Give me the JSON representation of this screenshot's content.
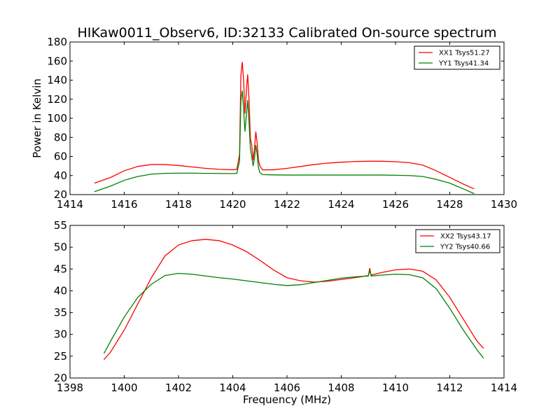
{
  "title": "HIKaw0011_Observ6, ID:32133 Calibrated On-source spectrum",
  "chart_data": [
    {
      "type": "line",
      "title": "HIKaw0011_Observ6, ID:32133 Calibrated On-source spectrum",
      "xlabel": "",
      "ylabel": "Power in Kelvin",
      "xlim": [
        1414,
        1430
      ],
      "ylim": [
        20,
        180
      ],
      "xticks": [
        1414,
        1416,
        1418,
        1420,
        1422,
        1424,
        1426,
        1428,
        1430
      ],
      "yticks": [
        20,
        40,
        60,
        80,
        100,
        120,
        140,
        160,
        180
      ],
      "grid": false,
      "legend": "top-right",
      "series": [
        {
          "name": "XX1 Tsys51.27",
          "color": "#ff0000",
          "x": [
            1414.9,
            1415.5,
            1416.0,
            1416.5,
            1417.0,
            1417.5,
            1418.0,
            1418.5,
            1419.0,
            1419.5,
            1420.0,
            1420.15,
            1420.25,
            1420.3,
            1420.35,
            1420.4,
            1420.45,
            1420.5,
            1420.55,
            1420.6,
            1420.65,
            1420.7,
            1420.75,
            1420.8,
            1420.85,
            1420.9,
            1420.95,
            1421.0,
            1421.1,
            1421.5,
            1422.0,
            1422.5,
            1423.0,
            1423.5,
            1424.0,
            1424.5,
            1425.0,
            1425.5,
            1426.0,
            1426.5,
            1427.0,
            1427.5,
            1428.0,
            1428.5,
            1428.9
          ],
          "y": [
            32,
            38,
            45,
            49.5,
            51.5,
            51.5,
            50.5,
            49,
            47.5,
            46.5,
            46,
            46.5,
            62,
            145,
            159,
            140,
            105,
            128,
            146,
            120,
            79,
            72,
            56,
            68,
            86,
            74,
            56,
            50,
            46,
            46,
            47.5,
            49.5,
            51.5,
            53,
            54,
            54.7,
            55,
            55,
            54.5,
            53.5,
            51,
            45,
            38,
            31,
            26
          ]
        },
        {
          "name": "YY1 Tsys41.34",
          "color": "#008000",
          "x": [
            1414.9,
            1415.5,
            1416.0,
            1416.5,
            1417.0,
            1417.5,
            1418.0,
            1418.5,
            1419.0,
            1419.5,
            1420.0,
            1420.15,
            1420.25,
            1420.3,
            1420.35,
            1420.4,
            1420.45,
            1420.5,
            1420.55,
            1420.6,
            1420.65,
            1420.7,
            1420.75,
            1420.8,
            1420.85,
            1420.9,
            1420.95,
            1421.0,
            1421.1,
            1421.5,
            1422.0,
            1422.5,
            1423.0,
            1423.5,
            1424.0,
            1424.5,
            1425.0,
            1425.5,
            1426.0,
            1426.5,
            1427.0,
            1427.5,
            1428.0,
            1428.5,
            1428.9
          ],
          "y": [
            23,
            29,
            35,
            39,
            41.5,
            42.3,
            42.5,
            42.5,
            42.3,
            42.2,
            42,
            42.3,
            55,
            118,
            129,
            110,
            86,
            103,
            119,
            96,
            68,
            60,
            50,
            58,
            72,
            62,
            48,
            43,
            41,
            40.7,
            40.5,
            40.5,
            40.5,
            40.5,
            40.5,
            40.5,
            40.5,
            40.5,
            40.3,
            40,
            39,
            36,
            32,
            26,
            21
          ]
        }
      ]
    },
    {
      "type": "line",
      "title": "",
      "xlabel": "Frequency (MHz)",
      "ylabel": "",
      "xlim": [
        1398,
        1414
      ],
      "ylim": [
        20,
        55
      ],
      "xticks": [
        1398,
        1400,
        1402,
        1404,
        1406,
        1408,
        1410,
        1412,
        1414
      ],
      "yticks": [
        20,
        25,
        30,
        35,
        40,
        45,
        50,
        55
      ],
      "grid": false,
      "legend": "top-right",
      "series": [
        {
          "name": "XX2 Tsys43.17",
          "color": "#ff0000",
          "x": [
            1399.25,
            1399.5,
            1400.0,
            1400.5,
            1401.0,
            1401.5,
            1402.0,
            1402.5,
            1403.0,
            1403.5,
            1404.0,
            1404.5,
            1405.0,
            1405.5,
            1406.0,
            1406.5,
            1407.0,
            1407.5,
            1408.0,
            1408.5,
            1409.0,
            1409.05,
            1409.1,
            1409.5,
            1410.0,
            1410.5,
            1411.0,
            1411.5,
            1412.0,
            1412.5,
            1413.0,
            1413.25
          ],
          "y": [
            24.2,
            26,
            31,
            37,
            43,
            48,
            50.5,
            51.5,
            51.8,
            51.5,
            50.5,
            49,
            47,
            44.8,
            43,
            42.3,
            42,
            42.2,
            42.6,
            43,
            43.5,
            45.2,
            43.6,
            44.2,
            44.8,
            45,
            44.5,
            42.5,
            38.5,
            33.5,
            28.5,
            26.8
          ]
        },
        {
          "name": "YY2 Tsys40.66",
          "color": "#008000",
          "x": [
            1399.25,
            1399.5,
            1400.0,
            1400.5,
            1401.0,
            1401.5,
            1402.0,
            1402.5,
            1403.0,
            1403.5,
            1404.0,
            1404.5,
            1405.0,
            1405.5,
            1406.0,
            1406.5,
            1407.0,
            1407.5,
            1408.0,
            1408.5,
            1409.0,
            1409.05,
            1409.1,
            1409.5,
            1410.0,
            1410.5,
            1411.0,
            1411.5,
            1412.0,
            1412.5,
            1413.0,
            1413.25
          ],
          "y": [
            25.6,
            28.5,
            34,
            38.5,
            41.5,
            43.5,
            44,
            43.8,
            43.4,
            43,
            42.7,
            42.3,
            41.9,
            41.5,
            41.2,
            41.4,
            41.9,
            42.4,
            42.9,
            43.2,
            43.4,
            44.8,
            43.4,
            43.6,
            43.8,
            43.7,
            43,
            40.5,
            36,
            31,
            26.5,
            24.5
          ]
        }
      ]
    }
  ]
}
